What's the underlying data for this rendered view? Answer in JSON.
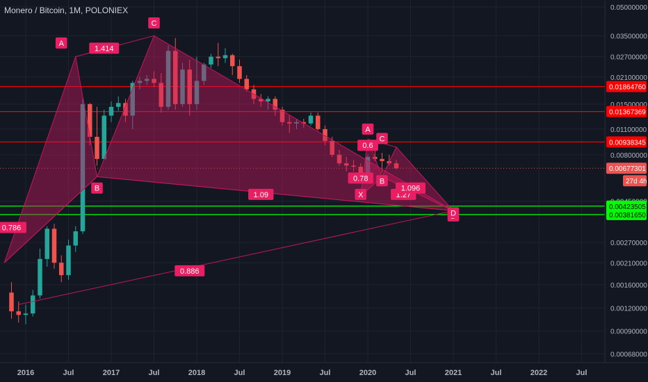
{
  "chart_data": {
    "type": "candlestick",
    "symbol": "Monero / Bitcoin, 1M, POLONIEX",
    "ylog": true,
    "ylim": [
      0.00062,
      0.05
    ],
    "y_ticks": [
      "0.05000000",
      "0.03500000",
      "0.02700000",
      "0.02100000",
      "0.01500000",
      "0.01100000",
      "0.00800000",
      "0.00450000",
      "0.00270000",
      "0.00210000",
      "0.00160000",
      "0.00120000",
      "0.00090000",
      "0.00068000"
    ],
    "x_ticks": [
      "2016",
      "Jul",
      "2017",
      "Jul",
      "2018",
      "Jul",
      "2019",
      "Jul",
      "2020",
      "Jul",
      "2021",
      "Jul",
      "2022",
      "Jul"
    ],
    "grid": true,
    "colors": {
      "up": "#26a69a",
      "down": "#ef5350",
      "pattern": "#c2185b",
      "red_level": "#ff0000",
      "green_level": "#00ff00",
      "label_bg": "#e91e63"
    },
    "candles": [
      {
        "t": "2015-11",
        "o": 0.00145,
        "h": 0.00165,
        "l": 0.00105,
        "c": 0.00115
      },
      {
        "t": "2015-12",
        "o": 0.00115,
        "h": 0.0013,
        "l": 0.001,
        "c": 0.0011
      },
      {
        "t": "2016-01",
        "o": 0.0011,
        "h": 0.00125,
        "l": 0.00098,
        "c": 0.00112
      },
      {
        "t": "2016-02",
        "o": 0.00112,
        "h": 0.0015,
        "l": 0.00108,
        "c": 0.0014
      },
      {
        "t": "2016-03",
        "o": 0.0014,
        "h": 0.0025,
        "l": 0.00135,
        "c": 0.0022
      },
      {
        "t": "2016-04",
        "o": 0.0022,
        "h": 0.0033,
        "l": 0.002,
        "c": 0.0032
      },
      {
        "t": "2016-05",
        "o": 0.0032,
        "h": 0.0034,
        "l": 0.00195,
        "c": 0.0021
      },
      {
        "t": "2016-06",
        "o": 0.0021,
        "h": 0.0023,
        "l": 0.00165,
        "c": 0.0018
      },
      {
        "t": "2016-07",
        "o": 0.0018,
        "h": 0.0028,
        "l": 0.0017,
        "c": 0.0026
      },
      {
        "t": "2016-08",
        "o": 0.0026,
        "h": 0.0033,
        "l": 0.0024,
        "c": 0.0031
      },
      {
        "t": "2016-09",
        "o": 0.0031,
        "h": 0.016,
        "l": 0.003,
        "c": 0.015
      },
      {
        "t": "2016-10",
        "o": 0.015,
        "h": 0.0152,
        "l": 0.009,
        "c": 0.01
      },
      {
        "t": "2016-11",
        "o": 0.01,
        "h": 0.0145,
        "l": 0.007,
        "c": 0.0076
      },
      {
        "t": "2016-12",
        "o": 0.0076,
        "h": 0.014,
        "l": 0.0075,
        "c": 0.013
      },
      {
        "t": "2017-01",
        "o": 0.013,
        "h": 0.0155,
        "l": 0.012,
        "c": 0.0145
      },
      {
        "t": "2017-02",
        "o": 0.0145,
        "h": 0.0165,
        "l": 0.0138,
        "c": 0.0152
      },
      {
        "t": "2017-03",
        "o": 0.0152,
        "h": 0.016,
        "l": 0.012,
        "c": 0.013
      },
      {
        "t": "2017-04",
        "o": 0.013,
        "h": 0.02,
        "l": 0.011,
        "c": 0.0195
      },
      {
        "t": "2017-05",
        "o": 0.0195,
        "h": 0.021,
        "l": 0.018,
        "c": 0.02
      },
      {
        "t": "2017-06",
        "o": 0.02,
        "h": 0.0215,
        "l": 0.019,
        "c": 0.0205
      },
      {
        "t": "2017-07",
        "o": 0.0205,
        "h": 0.0225,
        "l": 0.0185,
        "c": 0.0195
      },
      {
        "t": "2017-08",
        "o": 0.0195,
        "h": 0.022,
        "l": 0.0135,
        "c": 0.0145
      },
      {
        "t": "2017-09",
        "o": 0.0145,
        "h": 0.031,
        "l": 0.014,
        "c": 0.029
      },
      {
        "t": "2017-10",
        "o": 0.029,
        "h": 0.034,
        "l": 0.014,
        "c": 0.015
      },
      {
        "t": "2017-11",
        "o": 0.015,
        "h": 0.025,
        "l": 0.0145,
        "c": 0.023
      },
      {
        "t": "2017-12",
        "o": 0.023,
        "h": 0.026,
        "l": 0.013,
        "c": 0.015
      },
      {
        "t": "2018-01",
        "o": 0.015,
        "h": 0.027,
        "l": 0.014,
        "c": 0.02
      },
      {
        "t": "2018-02",
        "o": 0.02,
        "h": 0.025,
        "l": 0.019,
        "c": 0.0245
      },
      {
        "t": "2018-03",
        "o": 0.0245,
        "h": 0.028,
        "l": 0.0235,
        "c": 0.027
      },
      {
        "t": "2018-04",
        "o": 0.027,
        "h": 0.032,
        "l": 0.024,
        "c": 0.0265
      },
      {
        "t": "2018-05",
        "o": 0.0265,
        "h": 0.03,
        "l": 0.025,
        "c": 0.0275
      },
      {
        "t": "2018-06",
        "o": 0.0275,
        "h": 0.028,
        "l": 0.0215,
        "c": 0.024
      },
      {
        "t": "2018-07",
        "o": 0.024,
        "h": 0.026,
        "l": 0.0195,
        "c": 0.0205
      },
      {
        "t": "2018-08",
        "o": 0.0205,
        "h": 0.0215,
        "l": 0.0175,
        "c": 0.018
      },
      {
        "t": "2018-09",
        "o": 0.018,
        "h": 0.019,
        "l": 0.015,
        "c": 0.016
      },
      {
        "t": "2018-10",
        "o": 0.016,
        "h": 0.017,
        "l": 0.0145,
        "c": 0.0155
      },
      {
        "t": "2018-11",
        "o": 0.0155,
        "h": 0.0165,
        "l": 0.014,
        "c": 0.016
      },
      {
        "t": "2018-12",
        "o": 0.016,
        "h": 0.0165,
        "l": 0.013,
        "c": 0.014
      },
      {
        "t": "2019-01",
        "o": 0.014,
        "h": 0.0145,
        "l": 0.0115,
        "c": 0.012
      },
      {
        "t": "2019-02",
        "o": 0.012,
        "h": 0.013,
        "l": 0.0105,
        "c": 0.0118
      },
      {
        "t": "2019-03",
        "o": 0.0118,
        "h": 0.0125,
        "l": 0.011,
        "c": 0.012
      },
      {
        "t": "2019-04",
        "o": 0.012,
        "h": 0.0125,
        "l": 0.0112,
        "c": 0.0118
      },
      {
        "t": "2019-05",
        "o": 0.0118,
        "h": 0.0135,
        "l": 0.0115,
        "c": 0.013
      },
      {
        "t": "2019-06",
        "o": 0.013,
        "h": 0.0135,
        "l": 0.0108,
        "c": 0.011
      },
      {
        "t": "2019-07",
        "o": 0.011,
        "h": 0.0115,
        "l": 0.009,
        "c": 0.0095
      },
      {
        "t": "2019-08",
        "o": 0.0095,
        "h": 0.01,
        "l": 0.0078,
        "c": 0.008
      },
      {
        "t": "2019-09",
        "o": 0.008,
        "h": 0.0085,
        "l": 0.007,
        "c": 0.0072
      },
      {
        "t": "2019-10",
        "o": 0.0072,
        "h": 0.0078,
        "l": 0.0065,
        "c": 0.007
      },
      {
        "t": "2019-11",
        "o": 0.007,
        "h": 0.0075,
        "l": 0.0065,
        "c": 0.0069
      },
      {
        "t": "2019-12",
        "o": 0.0069,
        "h": 0.0072,
        "l": 0.006,
        "c": 0.0062
      },
      {
        "t": "2020-01",
        "o": 0.0062,
        "h": 0.008,
        "l": 0.0058,
        "c": 0.0078
      },
      {
        "t": "2020-02",
        "o": 0.0078,
        "h": 0.009,
        "l": 0.0074,
        "c": 0.0076
      },
      {
        "t": "2020-03",
        "o": 0.0076,
        "h": 0.0082,
        "l": 0.0064,
        "c": 0.0074
      },
      {
        "t": "2020-04",
        "o": 0.0074,
        "h": 0.008,
        "l": 0.007,
        "c": 0.0072
      },
      {
        "t": "2020-05",
        "o": 0.0072,
        "h": 0.0075,
        "l": 0.0067,
        "c": 0.00677
      }
    ],
    "red_levels": [
      {
        "price": 0.0186476,
        "label": "0.01864760"
      },
      {
        "price": 0.01367369,
        "label": "0.01367369"
      },
      {
        "price": 0.00938345,
        "label": "0.00938345"
      }
    ],
    "green_levels": [
      {
        "price": 0.00423505,
        "label": "0.00423505"
      },
      {
        "price": 0.0038165,
        "label": "0.00381650"
      }
    ],
    "last_price": {
      "price": 0.00677301,
      "label": "0.00677301",
      "countdown": "27d 4h"
    },
    "harmonic_large": {
      "X": [
        "2015-10",
        0.0021
      ],
      "A": [
        "2016-08",
        0.027
      ],
      "B": [
        "2016-11",
        0.0061
      ],
      "C": [
        "2017-07",
        0.035
      ],
      "D": [
        "2021-01",
        0.004
      ]
    },
    "harmonic_small": {
      "X": [
        "2019-12",
        0.0048
      ],
      "A": [
        "2020-01",
        0.0097
      ],
      "B": [
        "2020-03",
        0.0061
      ],
      "C": [
        "2020-05",
        0.0088
      ],
      "D": [
        "2021-01",
        0.004
      ]
    },
    "extra_line": {
      "from": [
        "2015-12",
        0.00125
      ],
      "to": [
        "2021-01",
        0.004
      ]
    },
    "ratio_labels": [
      {
        "text": "1.414",
        "at": [
          "2016-12",
          0.03
        ]
      },
      {
        "text": "0.786",
        "at": [
          "2015-11",
          0.00325
        ]
      },
      {
        "text": "1.09",
        "at": [
          "2018-10",
          0.0049
        ]
      },
      {
        "text": "0.886",
        "at": [
          "2017-12",
          0.0019
        ]
      },
      {
        "text": "0.6",
        "at": [
          "2020-01",
          0.009
        ]
      },
      {
        "text": "0.78",
        "at": [
          "2019-12",
          0.006
        ]
      },
      {
        "text": "1.27",
        "at": [
          "2020-06",
          0.0049
        ]
      },
      {
        "text": "1.096",
        "at": [
          "2020-07",
          0.0053
        ]
      }
    ],
    "point_labels": [
      {
        "text": "A",
        "at": [
          "2016-06",
          0.032
        ]
      },
      {
        "text": "B",
        "at": [
          "2016-11",
          0.0053
        ]
      },
      {
        "text": "C",
        "at": [
          "2017-07",
          0.041
        ]
      },
      {
        "text": "D",
        "at": [
          "2021-01",
          0.00375
        ]
      },
      {
        "text": "A",
        "at": [
          "2020-01",
          0.011
        ]
      },
      {
        "text": "C",
        "at": [
          "2020-03",
          0.0098
        ]
      },
      {
        "text": "B",
        "at": [
          "2020-03",
          0.0058
        ]
      },
      {
        "text": "X",
        "at": [
          "2019-12",
          0.0049
        ]
      },
      {
        "text": "D",
        "at": [
          "2021-01",
          0.0039
        ]
      }
    ]
  }
}
